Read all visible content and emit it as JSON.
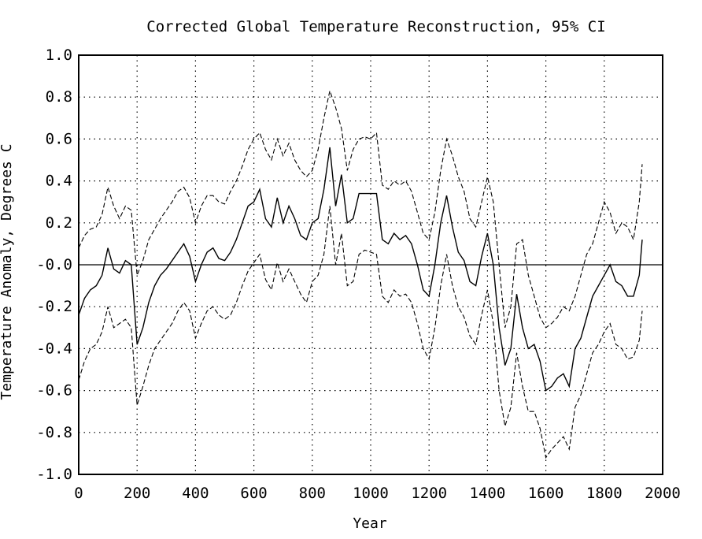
{
  "chart_data": {
    "type": "line",
    "title": "Corrected Global Temperature Reconstruction, 95% CI",
    "xlabel": "Year",
    "ylabel": "Temperature Anomaly, Degrees C",
    "xlim": [
      0,
      2000
    ],
    "ylim": [
      -1.0,
      1.0
    ],
    "x_ticks": [
      0,
      200,
      400,
      600,
      800,
      1000,
      1200,
      1400,
      1600,
      1800,
      2000
    ],
    "x_tick_labels": [
      "0",
      "200",
      "400",
      "600",
      "800",
      "1000",
      "1200",
      "1400",
      "1600",
      "1800",
      "2000"
    ],
    "y_ticks": [
      1.0,
      0.8,
      0.6,
      0.4,
      0.2,
      0.0,
      -0.2,
      -0.4,
      -0.6,
      -0.8,
      -1.0
    ],
    "y_tick_labels": [
      "1.0",
      "0.8",
      "0.6",
      "0.4",
      "0.2",
      "-0.0",
      "-0.2",
      "-0.4",
      "-0.6",
      "-0.8",
      "-1.0"
    ],
    "grid": true,
    "zero_line": true,
    "series": [
      {
        "style": "dashed",
        "x": [
          0,
          20,
          40,
          60,
          80,
          100,
          120,
          140,
          160,
          180,
          200,
          220,
          240,
          260,
          280,
          300,
          320,
          340,
          360,
          380,
          400,
          420,
          440,
          460,
          480,
          500,
          520,
          540,
          560,
          580,
          600,
          620,
          640,
          660,
          680,
          700,
          720,
          740,
          760,
          780,
          800,
          820,
          840,
          860,
          880,
          900,
          920,
          940,
          960,
          980,
          1000,
          1020,
          1040,
          1060,
          1080,
          1100,
          1120,
          1140,
          1160,
          1180,
          1200,
          1220,
          1240,
          1260,
          1280,
          1300,
          1320,
          1340,
          1360,
          1380,
          1400,
          1420,
          1440,
          1460,
          1480,
          1500,
          1520,
          1540,
          1560,
          1580,
          1600,
          1620,
          1640,
          1660,
          1680,
          1700,
          1720,
          1740,
          1760,
          1780,
          1800,
          1820,
          1840,
          1860,
          1880,
          1900,
          1920,
          1930
        ],
        "values": [
          0.08,
          0.14,
          0.17,
          0.18,
          0.24,
          0.37,
          0.28,
          0.22,
          0.28,
          0.26,
          -0.05,
          0.02,
          0.12,
          0.17,
          0.22,
          0.26,
          0.3,
          0.35,
          0.37,
          0.32,
          0.2,
          0.28,
          0.33,
          0.33,
          0.3,
          0.29,
          0.35,
          0.4,
          0.47,
          0.55,
          0.6,
          0.63,
          0.55,
          0.5,
          0.6,
          0.52,
          0.58,
          0.5,
          0.45,
          0.42,
          0.45,
          0.55,
          0.7,
          0.83,
          0.75,
          0.65,
          0.45,
          0.55,
          0.6,
          0.61,
          0.6,
          0.63,
          0.38,
          0.36,
          0.4,
          0.38,
          0.4,
          0.35,
          0.25,
          0.15,
          0.12,
          0.25,
          0.45,
          0.6,
          0.52,
          0.42,
          0.35,
          0.22,
          0.18,
          0.3,
          0.42,
          0.3,
          0.0,
          -0.3,
          -0.2,
          0.1,
          0.12,
          -0.05,
          -0.15,
          -0.25,
          -0.3,
          -0.28,
          -0.25,
          -0.2,
          -0.22,
          -0.15,
          -0.05,
          0.05,
          0.1,
          0.2,
          0.3,
          0.25,
          0.15,
          0.2,
          0.18,
          0.12,
          0.3,
          0.48
        ]
      },
      {
        "style": "solid",
        "x": [
          0,
          20,
          40,
          60,
          80,
          100,
          120,
          140,
          160,
          180,
          200,
          220,
          240,
          260,
          280,
          300,
          320,
          340,
          360,
          380,
          400,
          420,
          440,
          460,
          480,
          500,
          520,
          540,
          560,
          580,
          600,
          620,
          640,
          660,
          680,
          700,
          720,
          740,
          760,
          780,
          800,
          820,
          840,
          860,
          880,
          900,
          920,
          940,
          960,
          980,
          1000,
          1020,
          1040,
          1060,
          1080,
          1100,
          1120,
          1140,
          1160,
          1180,
          1200,
          1220,
          1240,
          1260,
          1280,
          1300,
          1320,
          1340,
          1360,
          1380,
          1400,
          1420,
          1440,
          1460,
          1480,
          1500,
          1520,
          1540,
          1560,
          1580,
          1600,
          1620,
          1640,
          1660,
          1680,
          1700,
          1720,
          1740,
          1760,
          1780,
          1800,
          1820,
          1840,
          1860,
          1880,
          1900,
          1920,
          1930
        ],
        "values": [
          -0.24,
          -0.16,
          -0.12,
          -0.1,
          -0.05,
          0.08,
          -0.02,
          -0.04,
          0.02,
          0.0,
          -0.38,
          -0.3,
          -0.18,
          -0.1,
          -0.05,
          -0.02,
          0.02,
          0.06,
          0.1,
          0.04,
          -0.08,
          0.0,
          0.06,
          0.08,
          0.03,
          0.02,
          0.06,
          0.12,
          0.2,
          0.28,
          0.3,
          0.36,
          0.22,
          0.18,
          0.32,
          0.2,
          0.28,
          0.22,
          0.14,
          0.12,
          0.2,
          0.22,
          0.36,
          0.56,
          0.28,
          0.43,
          0.2,
          0.22,
          0.34,
          0.34,
          0.34,
          0.34,
          0.12,
          0.1,
          0.15,
          0.12,
          0.14,
          0.1,
          0.0,
          -0.12,
          -0.15,
          0.0,
          0.2,
          0.33,
          0.18,
          0.06,
          0.02,
          -0.08,
          -0.1,
          0.04,
          0.15,
          0.0,
          -0.3,
          -0.48,
          -0.4,
          -0.14,
          -0.3,
          -0.4,
          -0.38,
          -0.46,
          -0.6,
          -0.58,
          -0.54,
          -0.52,
          -0.58,
          -0.4,
          -0.35,
          -0.25,
          -0.15,
          -0.1,
          -0.05,
          0.0,
          -0.08,
          -0.1,
          -0.15,
          -0.15,
          -0.05,
          0.12
        ]
      },
      {
        "style": "dashed",
        "x": [
          0,
          20,
          40,
          60,
          80,
          100,
          120,
          140,
          160,
          180,
          200,
          220,
          240,
          260,
          280,
          300,
          320,
          340,
          360,
          380,
          400,
          420,
          440,
          460,
          480,
          500,
          520,
          540,
          560,
          580,
          600,
          620,
          640,
          660,
          680,
          700,
          720,
          740,
          760,
          780,
          800,
          820,
          840,
          860,
          880,
          900,
          920,
          940,
          960,
          980,
          1000,
          1020,
          1040,
          1060,
          1080,
          1100,
          1120,
          1140,
          1160,
          1180,
          1200,
          1220,
          1240,
          1260,
          1280,
          1300,
          1320,
          1340,
          1360,
          1380,
          1400,
          1420,
          1440,
          1460,
          1480,
          1500,
          1520,
          1540,
          1560,
          1580,
          1600,
          1620,
          1640,
          1660,
          1680,
          1700,
          1720,
          1740,
          1760,
          1780,
          1800,
          1820,
          1840,
          1860,
          1880,
          1900,
          1920,
          1930
        ],
        "values": [
          -0.55,
          -0.46,
          -0.4,
          -0.38,
          -0.32,
          -0.2,
          -0.3,
          -0.28,
          -0.26,
          -0.3,
          -0.67,
          -0.58,
          -0.48,
          -0.4,
          -0.36,
          -0.32,
          -0.28,
          -0.22,
          -0.18,
          -0.22,
          -0.35,
          -0.28,
          -0.22,
          -0.2,
          -0.24,
          -0.26,
          -0.24,
          -0.18,
          -0.1,
          -0.03,
          0.01,
          0.05,
          -0.07,
          -0.12,
          0.01,
          -0.08,
          -0.02,
          -0.08,
          -0.14,
          -0.18,
          -0.08,
          -0.05,
          0.05,
          0.28,
          0.0,
          0.15,
          -0.1,
          -0.08,
          0.05,
          0.07,
          0.06,
          0.05,
          -0.15,
          -0.18,
          -0.12,
          -0.15,
          -0.14,
          -0.18,
          -0.28,
          -0.4,
          -0.45,
          -0.3,
          -0.1,
          0.05,
          -0.1,
          -0.2,
          -0.25,
          -0.34,
          -0.38,
          -0.24,
          -0.12,
          -0.28,
          -0.6,
          -0.77,
          -0.68,
          -0.42,
          -0.58,
          -0.7,
          -0.7,
          -0.78,
          -0.92,
          -0.88,
          -0.85,
          -0.82,
          -0.88,
          -0.68,
          -0.62,
          -0.52,
          -0.42,
          -0.38,
          -0.32,
          -0.28,
          -0.38,
          -0.4,
          -0.45,
          -0.44,
          -0.36,
          -0.22
        ]
      }
    ]
  }
}
